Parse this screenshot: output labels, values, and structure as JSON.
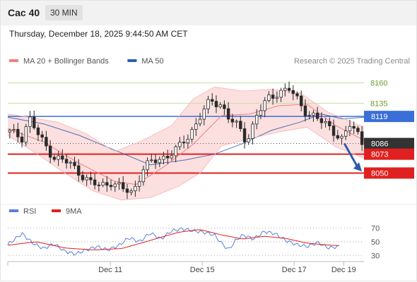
{
  "header": {
    "symbol": "Cac 40",
    "timeframe": "30 MIN",
    "timestamp": "Thursday, December 18, 2025 9:44:50 AM CET"
  },
  "credit": "Research © 2025 Trading Central",
  "colors": {
    "bollinger": "#f08080",
    "bollinger_fill": "#fbd9d9",
    "ma50": "#2e5fa8",
    "candle": "#2a2a2a",
    "resistance": "#c6e0a0",
    "pivot": "#3a6fd8",
    "support": "#e02020",
    "current": "#333333",
    "rsi": "#5b7fd8",
    "rsi_ma": "#e02020",
    "arrow": "#2b5ca8"
  },
  "chart_data": [
    {
      "type": "candlestick",
      "legend": [
        {
          "name": "MA 20 + Bollinger Bands",
          "color": "#f08080"
        },
        {
          "name": "MA 50",
          "color": "#2e5fa8"
        }
      ],
      "ylim": [
        8016,
        8175
      ],
      "levels": [
        {
          "value": 8160,
          "label": "8160",
          "kind": "resistance"
        },
        {
          "value": 8135,
          "label": "8135",
          "kind": "resistance"
        },
        {
          "value": 8119,
          "label": "8119",
          "kind": "pivot"
        },
        {
          "value": 8086,
          "label": "8086",
          "kind": "current"
        },
        {
          "value": 8073,
          "label": "8073",
          "kind": "support"
        },
        {
          "value": 8050,
          "label": "8050",
          "kind": "support"
        }
      ],
      "x_ticks": [
        "Dec 11",
        "Dec 15",
        "Dec 17",
        "Dec 19"
      ],
      "candles_count": 88,
      "close_path": [
        [
          0,
          8100
        ],
        [
          4,
          8094
        ],
        [
          6,
          8118
        ],
        [
          9,
          8092
        ],
        [
          13,
          8070
        ],
        [
          17,
          8062
        ],
        [
          20,
          8052
        ],
        [
          23,
          8038
        ],
        [
          26,
          8034
        ],
        [
          29,
          8040
        ],
        [
          32,
          8030
        ],
        [
          35,
          8026
        ],
        [
          38,
          8056
        ],
        [
          41,
          8064
        ],
        [
          44,
          8070
        ],
        [
          48,
          8080
        ],
        [
          51,
          8097
        ],
        [
          54,
          8120
        ],
        [
          57,
          8137
        ],
        [
          60,
          8134
        ],
        [
          62,
          8118
        ],
        [
          65,
          8103
        ],
        [
          67,
          8089
        ],
        [
          70,
          8122
        ],
        [
          73,
          8139
        ],
        [
          76,
          8150
        ],
        [
          79,
          8152
        ],
        [
          81,
          8140
        ],
        [
          84,
          8124
        ],
        [
          86,
          8119
        ],
        [
          88,
          8112
        ],
        [
          90,
          8107
        ],
        [
          92,
          8100
        ],
        [
          94,
          8090
        ],
        [
          96,
          8108
        ],
        [
          98,
          8100
        ],
        [
          100,
          8084
        ]
      ],
      "ma20_path": [
        [
          0,
          8104
        ],
        [
          10,
          8088
        ],
        [
          20,
          8062
        ],
        [
          30,
          8040
        ],
        [
          36,
          8036
        ],
        [
          44,
          8058
        ],
        [
          52,
          8085
        ],
        [
          60,
          8120
        ],
        [
          68,
          8122
        ],
        [
          76,
          8132
        ],
        [
          84,
          8134
        ],
        [
          92,
          8108
        ],
        [
          100,
          8090
        ]
      ],
      "ma50_path": [
        [
          0,
          8118
        ],
        [
          10,
          8110
        ],
        [
          20,
          8096
        ],
        [
          30,
          8078
        ],
        [
          40,
          8060
        ],
        [
          50,
          8066
        ],
        [
          58,
          8073
        ],
        [
          66,
          8086
        ],
        [
          74,
          8102
        ],
        [
          82,
          8112
        ],
        [
          88,
          8122
        ],
        [
          94,
          8116
        ],
        [
          100,
          8118
        ]
      ],
      "bb_upper": [
        [
          0,
          8122
        ],
        [
          6,
          8118
        ],
        [
          14,
          8112
        ],
        [
          22,
          8098
        ],
        [
          30,
          8076
        ],
        [
          38,
          8090
        ],
        [
          46,
          8108
        ],
        [
          52,
          8140
        ],
        [
          58,
          8155
        ],
        [
          66,
          8150
        ],
        [
          74,
          8152
        ],
        [
          82,
          8148
        ],
        [
          90,
          8124
        ],
        [
          100,
          8106
        ]
      ],
      "bb_lower": [
        [
          0,
          8096
        ],
        [
          8,
          8074
        ],
        [
          16,
          8050
        ],
        [
          24,
          8028
        ],
        [
          32,
          8017
        ],
        [
          40,
          8020
        ],
        [
          48,
          8034
        ],
        [
          54,
          8050
        ],
        [
          60,
          8083
        ],
        [
          68,
          8092
        ],
        [
          76,
          8100
        ],
        [
          84,
          8106
        ],
        [
          92,
          8082
        ],
        [
          100,
          8068
        ]
      ]
    },
    {
      "type": "line",
      "legend": [
        {
          "name": "RSI",
          "color": "#5b7fd8"
        },
        {
          "name": "9MA",
          "color": "#e02020"
        }
      ],
      "ylim": [
        22,
        82
      ],
      "y_ticks": [
        70,
        50,
        30
      ],
      "rsi_path": [
        [
          0,
          46
        ],
        [
          4,
          62
        ],
        [
          7,
          48
        ],
        [
          10,
          40
        ],
        [
          13,
          47
        ],
        [
          16,
          36
        ],
        [
          19,
          32
        ],
        [
          22,
          38
        ],
        [
          25,
          43
        ],
        [
          28,
          38
        ],
        [
          31,
          44
        ],
        [
          34,
          56
        ],
        [
          37,
          50
        ],
        [
          40,
          63
        ],
        [
          43,
          54
        ],
        [
          46,
          66
        ],
        [
          49,
          69
        ],
        [
          52,
          66
        ],
        [
          55,
          64
        ],
        [
          58,
          60
        ],
        [
          60,
          48
        ],
        [
          62,
          38
        ],
        [
          64,
          52
        ],
        [
          66,
          60
        ],
        [
          69,
          54
        ],
        [
          72,
          65
        ],
        [
          75,
          62
        ],
        [
          78,
          52
        ],
        [
          81,
          46
        ],
        [
          84,
          43
        ],
        [
          87,
          49
        ],
        [
          90,
          41
        ],
        [
          93,
          43
        ],
        [
          96,
          54
        ],
        [
          98,
          40
        ],
        [
          100,
          45
        ]
      ],
      "ma9_path": [
        [
          0,
          45
        ],
        [
          8,
          50
        ],
        [
          16,
          41
        ],
        [
          24,
          38
        ],
        [
          32,
          40
        ],
        [
          40,
          52
        ],
        [
          48,
          64
        ],
        [
          54,
          68
        ],
        [
          60,
          60
        ],
        [
          66,
          54
        ],
        [
          72,
          58
        ],
        [
          78,
          55
        ],
        [
          84,
          48
        ],
        [
          90,
          45
        ],
        [
          96,
          44
        ],
        [
          100,
          45
        ]
      ]
    }
  ]
}
